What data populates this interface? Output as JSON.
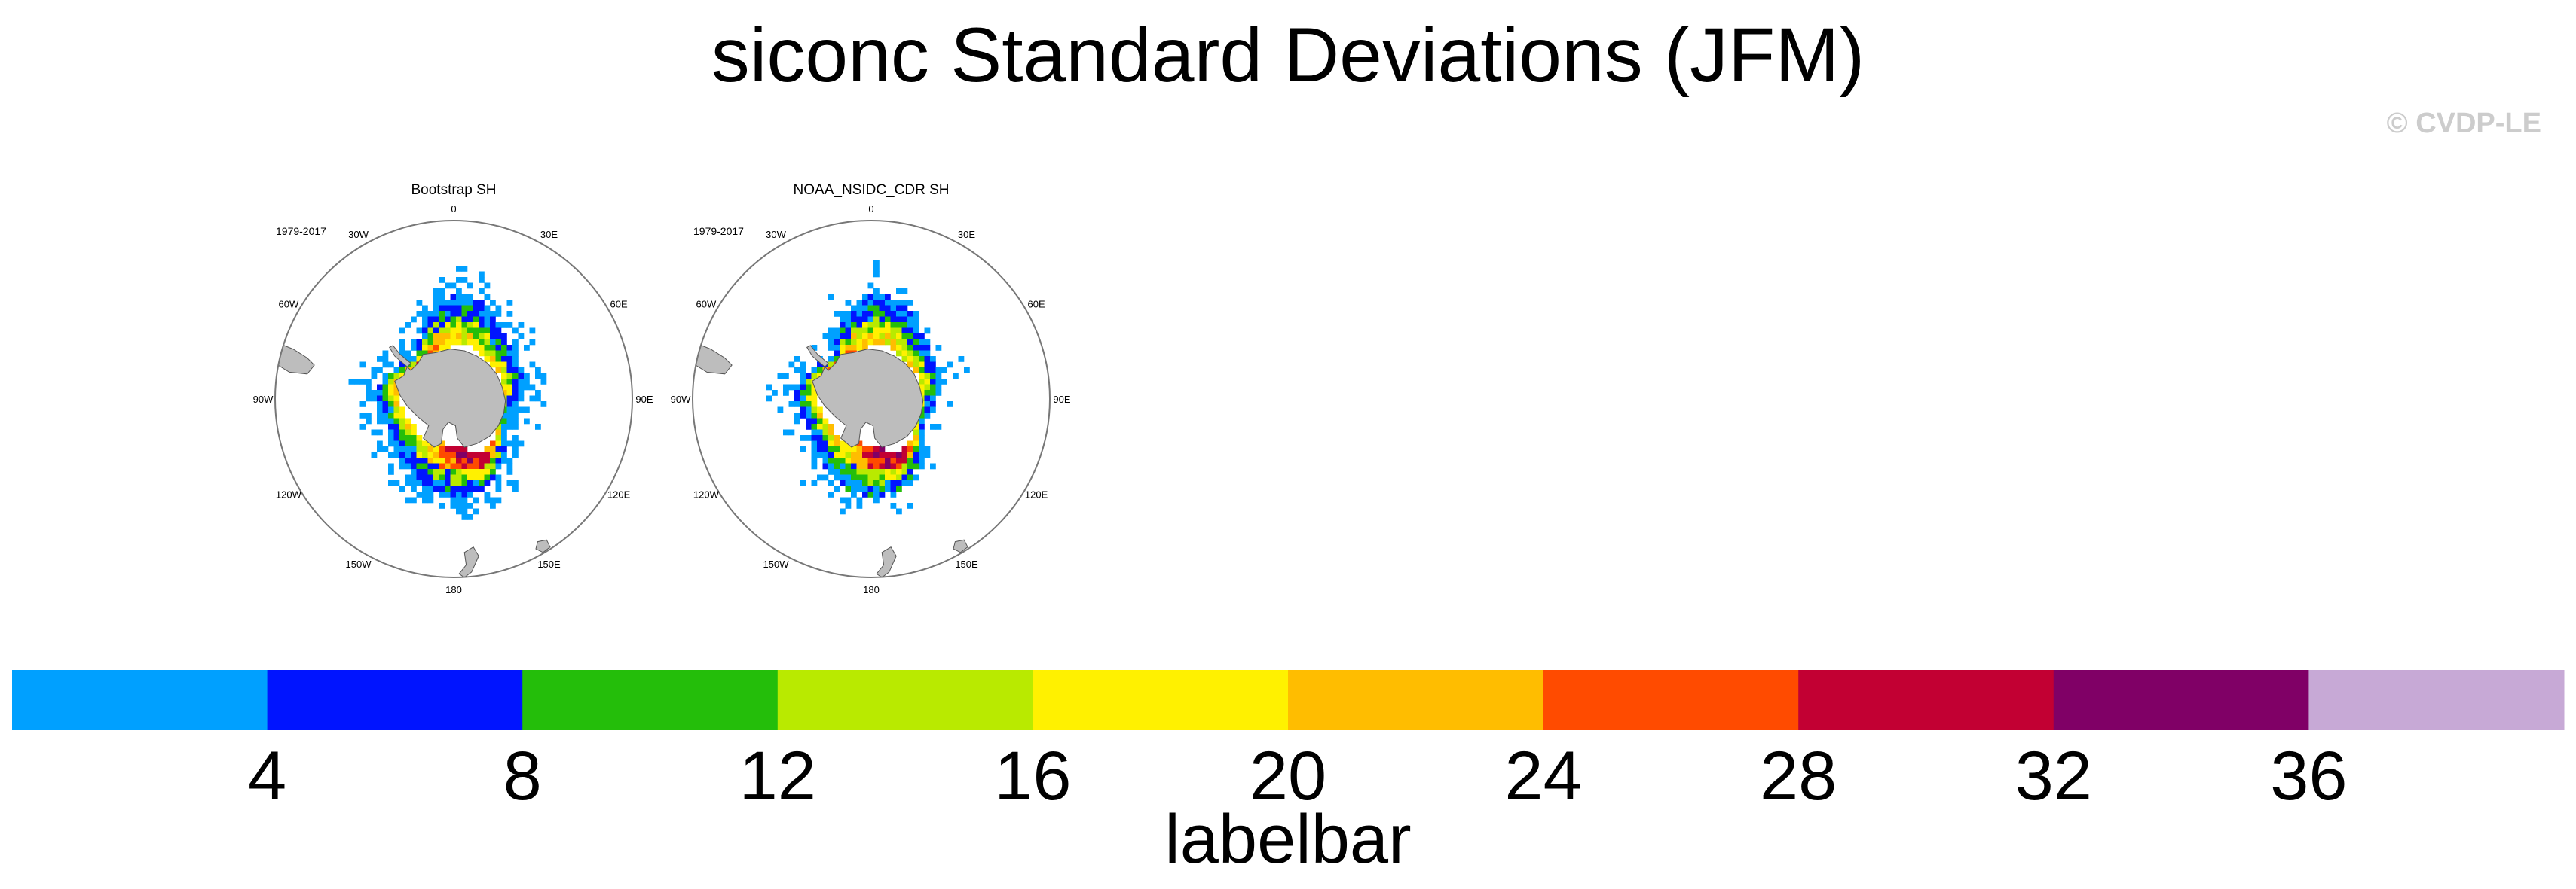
{
  "title": "siconc Standard Deviations (JFM)",
  "watermark": "© CVDP-LE",
  "panels": [
    {
      "title": "Bootstrap SH",
      "period": "1979-2017",
      "seed": 7,
      "outer_scatter": 0.55,
      "lon_labels": [
        "0",
        "30E",
        "60E",
        "90E",
        "120E",
        "150E",
        "180",
        "150W",
        "120W",
        "90W",
        "60W",
        "30W"
      ]
    },
    {
      "title": "NOAA_NSIDC_CDR SH",
      "period": "1979-2017",
      "seed": 19,
      "outer_scatter": 0.3,
      "lon_labels": [
        "0",
        "30E",
        "60E",
        "90E",
        "120E",
        "150E",
        "180",
        "150W",
        "120W",
        "90W",
        "60W",
        "30W"
      ]
    }
  ],
  "colorbar": {
    "label": "labelbar",
    "tick_labels": [
      "4",
      "8",
      "12",
      "16",
      "20",
      "24",
      "28",
      "32",
      "36"
    ],
    "colors": [
      "#00a0ff",
      "#0014ff",
      "#24be0a",
      "#b9ea00",
      "#fff100",
      "#ffbd00",
      "#ff4b00",
      "#c20033",
      "#800066",
      "#c7a9d6"
    ]
  },
  "land_color": "#bdbdbd",
  "ocean_color": "#ffffff"
}
